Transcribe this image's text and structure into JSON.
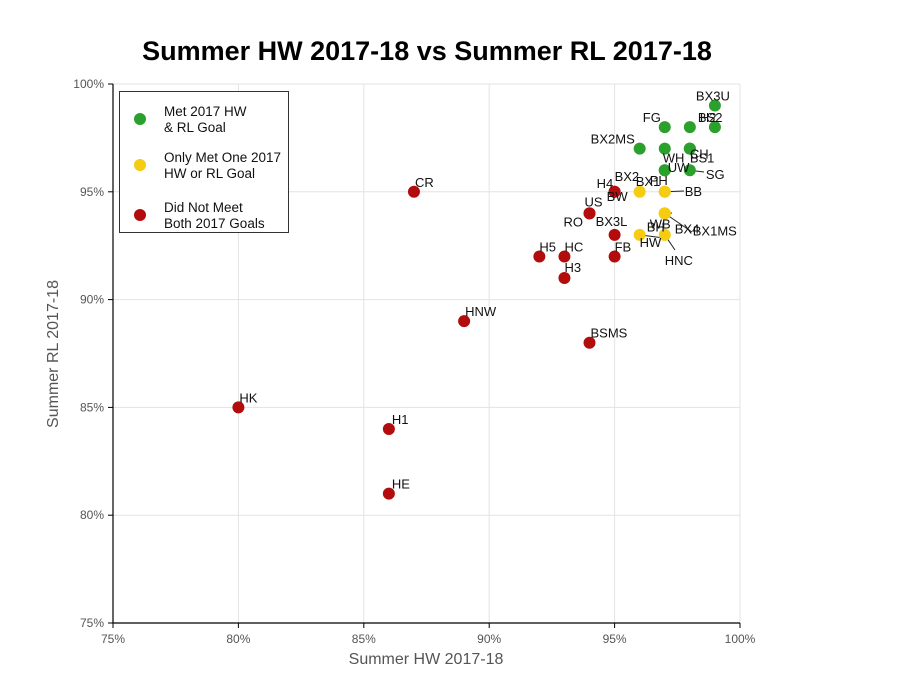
{
  "chart_data": {
    "type": "scatter",
    "title": "Summer HW 2017-18 vs Summer RL 2017-18",
    "xlabel": "Summer HW 2017-18",
    "ylabel": "Summer RL 2017-18",
    "xlim": [
      75,
      100
    ],
    "ylim": [
      75,
      100
    ],
    "x_ticks": [
      75,
      80,
      85,
      90,
      95,
      100
    ],
    "y_ticks": [
      75,
      80,
      85,
      90,
      95,
      100
    ],
    "tick_format": "percent",
    "grid": true,
    "legend_position": "top-left",
    "series": [
      {
        "name": "Met 2017 HW\n& RL Goal",
        "color": "#2ca02c",
        "points": [
          {
            "label": "BX3U",
            "x": 99,
            "y": 99
          },
          {
            "label": "BS2",
            "x": 99,
            "y": 98
          },
          {
            "label": "FG",
            "x": 97,
            "y": 98
          },
          {
            "label": "H2",
            "x": 98,
            "y": 98
          },
          {
            "label": "BX2MS",
            "x": 96,
            "y": 97
          },
          {
            "label": "WH",
            "x": 97,
            "y": 97
          },
          {
            "label": "BS1",
            "x": 98,
            "y": 97
          },
          {
            "label": "CH",
            "x": 98,
            "y": 97
          },
          {
            "label": "BX1",
            "x": 97,
            "y": 96
          },
          {
            "label": "UW",
            "x": 97,
            "y": 96
          },
          {
            "label": "SG",
            "x": 98,
            "y": 96
          }
        ]
      },
      {
        "name": "Only Met One 2017\nHW or RL Goal",
        "color": "#f5cc0f",
        "points": [
          {
            "label": "PH",
            "x": 97,
            "y": 95
          },
          {
            "label": "BB",
            "x": 97,
            "y": 95
          },
          {
            "label": "BW",
            "x": 96,
            "y": 95
          },
          {
            "label": "BH",
            "x": 97,
            "y": 94
          },
          {
            "label": "BX4",
            "x": 97,
            "y": 94
          },
          {
            "label": "WB",
            "x": 97,
            "y": 94
          },
          {
            "label": "BX1MS",
            "x": 97,
            "y": 94
          },
          {
            "label": "HW",
            "x": 96,
            "y": 93
          },
          {
            "label": "HNC",
            "x": 97,
            "y": 93
          }
        ]
      },
      {
        "name": "Did Not Meet\nBoth 2017 Goals",
        "color": "#b30c0c",
        "points": [
          {
            "label": "CR",
            "x": 87,
            "y": 95
          },
          {
            "label": "BX2",
            "x": 95,
            "y": 95
          },
          {
            "label": "H4",
            "x": 95,
            "y": 95
          },
          {
            "label": "US",
            "x": 94,
            "y": 94
          },
          {
            "label": "RO",
            "x": 94,
            "y": 94
          },
          {
            "label": "BX3L",
            "x": 95,
            "y": 93
          },
          {
            "label": "FB",
            "x": 95,
            "y": 92
          },
          {
            "label": "H5",
            "x": 92,
            "y": 92
          },
          {
            "label": "HC",
            "x": 93,
            "y": 92
          },
          {
            "label": "H3",
            "x": 93,
            "y": 91
          },
          {
            "label": "HNW",
            "x": 89,
            "y": 89
          },
          {
            "label": "BSMS",
            "x": 94,
            "y": 88
          },
          {
            "label": "HK",
            "x": 80,
            "y": 85
          },
          {
            "label": "H1",
            "x": 86,
            "y": 84
          },
          {
            "label": "HE",
            "x": 86,
            "y": 81
          }
        ]
      }
    ]
  }
}
